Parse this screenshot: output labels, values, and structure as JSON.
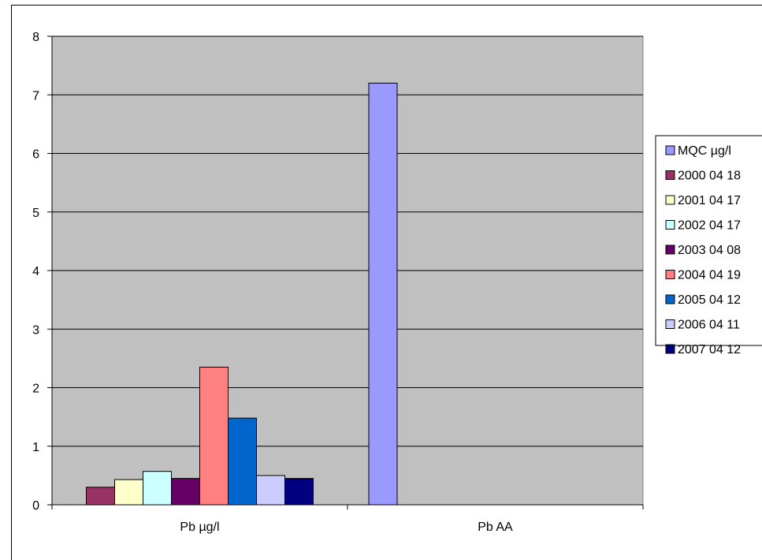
{
  "chart_data": {
    "type": "bar",
    "categories": [
      "Pb µg/l",
      "Pb AA"
    ],
    "ylim": [
      0,
      8
    ],
    "yticks": [
      0,
      1,
      2,
      3,
      4,
      5,
      6,
      7,
      8
    ],
    "grid": true,
    "legend_placement": "right",
    "plot_background": "#c0c0c0",
    "series": [
      {
        "name": "MQC µg/l",
        "color": "#9999ff",
        "values": [
          null,
          7.2
        ]
      },
      {
        "name": "2000 04 18",
        "color": "#993366",
        "values": [
          0.3,
          null
        ]
      },
      {
        "name": "2001 04 17",
        "color": "#ffffcc",
        "values": [
          0.43,
          null
        ]
      },
      {
        "name": "2002 04 17",
        "color": "#ccffff",
        "values": [
          0.57,
          null
        ]
      },
      {
        "name": "2003 04 08",
        "color": "#660066",
        "values": [
          0.45,
          null
        ]
      },
      {
        "name": "2004 04 19",
        "color": "#ff8080",
        "values": [
          2.35,
          null
        ]
      },
      {
        "name": "2005 04 12",
        "color": "#0066cc",
        "values": [
          1.48,
          null
        ]
      },
      {
        "name": "2006 04 11",
        "color": "#ccccff",
        "values": [
          0.5,
          null
        ]
      },
      {
        "name": "2007 04 12",
        "color": "#000080",
        "values": [
          0.45,
          null
        ]
      }
    ]
  }
}
